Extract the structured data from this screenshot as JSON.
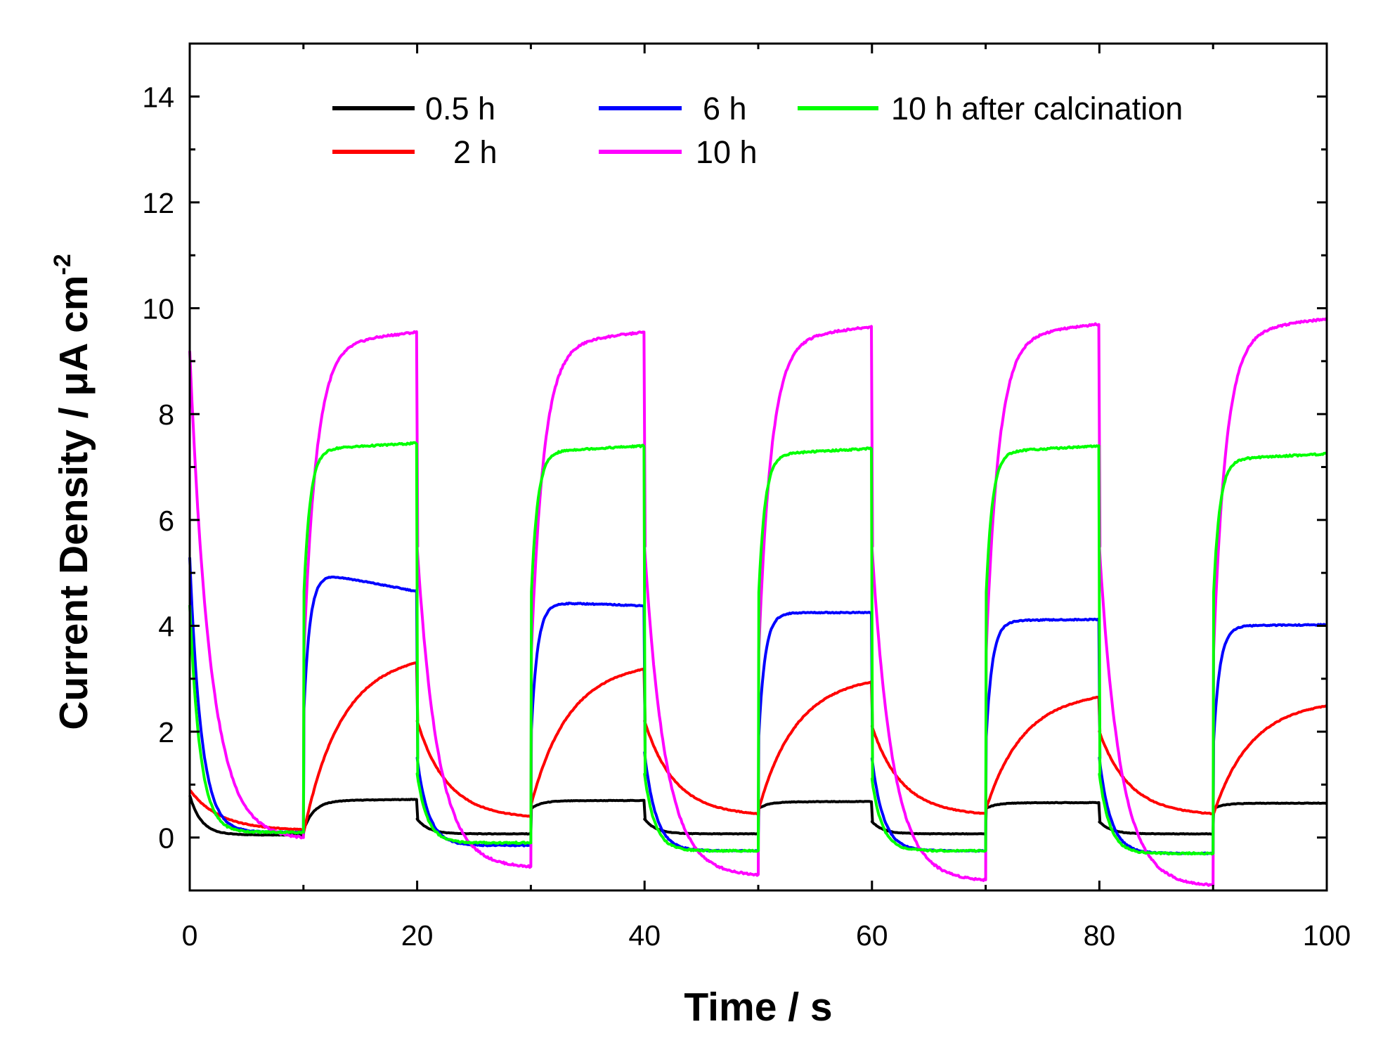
{
  "chart_data": {
    "type": "line",
    "title": "",
    "xlabel": "Time / s",
    "ylabel": {
      "main": "Current Density / ",
      "mu": "μ",
      "unit": "A cm",
      "superscript": "-2"
    },
    "xlim": [
      0,
      100
    ],
    "ylim": [
      -1,
      15
    ],
    "xticks": [
      0,
      20,
      40,
      60,
      80,
      100
    ],
    "xtick_labels": [
      "0",
      "20",
      "40",
      "60",
      "80",
      "100"
    ],
    "yticks": [
      0,
      2,
      4,
      6,
      8,
      10,
      12,
      14
    ],
    "ytick_labels": [
      "0",
      "2",
      "4",
      "6",
      "8",
      "10",
      "12",
      "14"
    ],
    "grid": false,
    "legend_position": "top",
    "light_cycle": {
      "period_s": 20,
      "light_on_offset_s": 10,
      "light_on_duration_s": 10
    },
    "series": [
      {
        "name": "0.5 h",
        "label": "0.5 h",
        "color": "#000000",
        "on_start_values": [
          0.15,
          0.55,
          0.55,
          0.55,
          0.55
        ],
        "on_plateau_values": [
          0.72,
          0.7,
          0.68,
          0.66,
          0.65
        ],
        "off_start_values": [
          0.8,
          0.35,
          0.35,
          0.3,
          0.3,
          0.3
        ],
        "off_end_values": [
          0.05,
          0.07,
          0.07,
          0.07,
          0.07
        ]
      },
      {
        "name": "2 h",
        "label": "2 h",
        "color": "#ff0000",
        "on_start_values": [
          0.2,
          0.7,
          0.6,
          0.6,
          0.5
        ],
        "on_plateau_values": [
          3.45,
          3.3,
          3.05,
          2.75,
          2.58
        ],
        "off_start_values": [
          0.9,
          2.2,
          2.2,
          2.1,
          2.0,
          2.0
        ],
        "off_end_values": [
          0.15,
          0.4,
          0.45,
          0.45,
          0.45
        ]
      },
      {
        "name": "6 h",
        "label": "6 h",
        "color": "#0000ff",
        "on_start_values": [
          2.2,
          1.8,
          1.7,
          1.7,
          1.6
        ],
        "on_peak_values": [
          5.05,
          4.45,
          4.25,
          4.1,
          4.0
        ],
        "on_plateau_values": [
          4.65,
          4.38,
          4.25,
          4.12,
          4.02
        ],
        "off_start_values": [
          5.3,
          1.5,
          1.6,
          1.5,
          1.5,
          1.6
        ],
        "off_end_values": [
          0.1,
          -0.15,
          -0.25,
          -0.25,
          -0.3
        ]
      },
      {
        "name": "10 h",
        "label": "10 h",
        "color": "#ff00ff",
        "on_start_values": [
          3.5,
          3.5,
          3.5,
          3.5,
          3.5
        ],
        "on_plateau_values": [
          9.55,
          9.55,
          9.65,
          9.7,
          9.8
        ],
        "off_start_values": [
          9.2,
          5.5,
          5.5,
          5.5,
          5.5,
          5.5
        ],
        "off_end_values": [
          0.0,
          -0.55,
          -0.7,
          -0.8,
          -0.9
        ]
      },
      {
        "name": "10 h after calcination",
        "label": "10 h after calcination",
        "color": "#00ff00",
        "on_start_values": [
          4.5,
          4.5,
          4.5,
          4.5,
          4.5
        ],
        "on_plateau_values": [
          7.45,
          7.4,
          7.35,
          7.4,
          7.25
        ],
        "off_start_values": [
          4.4,
          1.2,
          1.2,
          1.1,
          1.2,
          1.2
        ],
        "off_end_values": [
          0.1,
          -0.1,
          -0.25,
          -0.25,
          -0.3
        ]
      }
    ]
  }
}
